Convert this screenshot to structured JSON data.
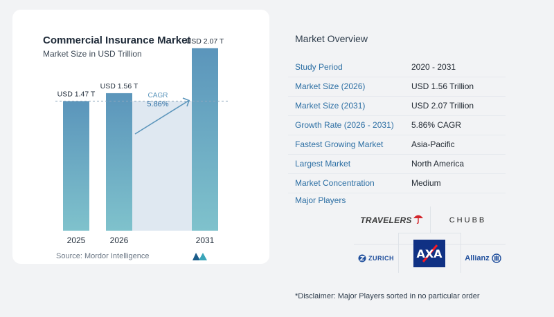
{
  "chart_data": {
    "type": "bar",
    "title": "Commercial Insurance Market",
    "subtitle": "Market Size in USD Trillion",
    "categories": [
      "2025",
      "2026",
      "2031"
    ],
    "values": [
      1.47,
      1.56,
      2.07
    ],
    "value_labels": [
      "USD 1.47 T",
      "USD 1.56 T",
      "USD 2.07 T"
    ],
    "annotation": {
      "label": "CAGR",
      "value": "5.86%"
    },
    "ylim": [
      0,
      2.5
    ],
    "bar_color": "#5b95bb",
    "bar_color_bottom": "#7fc2cc",
    "reference_line": 1.47,
    "grid": false
  },
  "source": "Source:  Mordor Intelligence",
  "overview": {
    "title": "Market Overview",
    "rows": [
      {
        "label": "Study Period",
        "value": "2020 - 2031"
      },
      {
        "label": "Market Size (2026)",
        "value": "USD 1.56 Trillion"
      },
      {
        "label": "Market Size (2031)",
        "value": "USD 2.07 Trillion"
      },
      {
        "label": "Growth Rate (2026 - 2031)",
        "value": "5.86% CAGR"
      },
      {
        "label": "Fastest Growing Market",
        "value": "Asia-Pacific"
      },
      {
        "label": "Largest Market",
        "value": "North America"
      },
      {
        "label": "Market Concentration",
        "value": "Medium"
      }
    ]
  },
  "major_players": {
    "title": "Major Players",
    "logos": [
      "TRAVELERS",
      "CHUBB",
      "ZURICH",
      "AXA",
      "Allianz"
    ]
  },
  "disclaimer": "*Disclaimer: Major Players sorted in no particular order"
}
